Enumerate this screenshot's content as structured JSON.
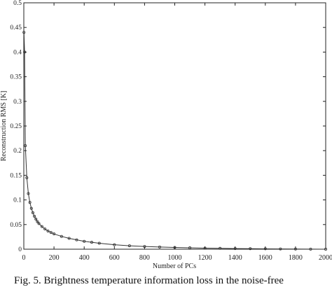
{
  "chart_data": {
    "type": "line",
    "title": "",
    "xlabel": "Number of PCs",
    "ylabel": "Reconstruction RMS [K]",
    "xlim": [
      0,
      2000
    ],
    "ylim": [
      0,
      0.5
    ],
    "xticks": [
      0,
      200,
      400,
      600,
      800,
      1000,
      1200,
      1400,
      1600,
      1800,
      2000
    ],
    "yticks": [
      0,
      0.05,
      0.1,
      0.15,
      0.2,
      0.25,
      0.3,
      0.35,
      0.4,
      0.45,
      0.5
    ],
    "ytick_labels": [
      "0",
      "0.05",
      "0.1",
      "0.15",
      "0.2",
      "0.25",
      "0.3",
      "0.35",
      "0.4",
      "0.45",
      "0.5"
    ],
    "grid": false,
    "marker": "o",
    "series": [
      {
        "x": [
          1,
          5,
          10,
          20,
          30,
          40,
          50,
          60,
          70,
          80,
          90,
          100,
          120,
          140,
          160,
          180,
          200,
          250,
          300,
          350,
          400,
          450,
          500,
          600,
          700,
          800,
          900,
          1000,
          1100,
          1200,
          1300,
          1400,
          1500,
          1600,
          1700,
          1800,
          1900,
          2000
        ],
        "values": [
          0.44,
          0.4,
          0.21,
          0.145,
          0.113,
          0.095,
          0.083,
          0.074,
          0.067,
          0.061,
          0.056,
          0.052,
          0.046,
          0.041,
          0.037,
          0.034,
          0.031,
          0.026,
          0.022,
          0.019,
          0.016,
          0.014,
          0.012,
          0.009,
          0.007,
          0.0055,
          0.0045,
          0.0035,
          0.0028,
          0.0022,
          0.0017,
          0.0013,
          0.001,
          0.0008,
          0.0006,
          0.0004,
          0.0002,
          0.0
        ]
      }
    ]
  },
  "caption": "Fig. 5. Brightness temperature information loss in the noise-free"
}
